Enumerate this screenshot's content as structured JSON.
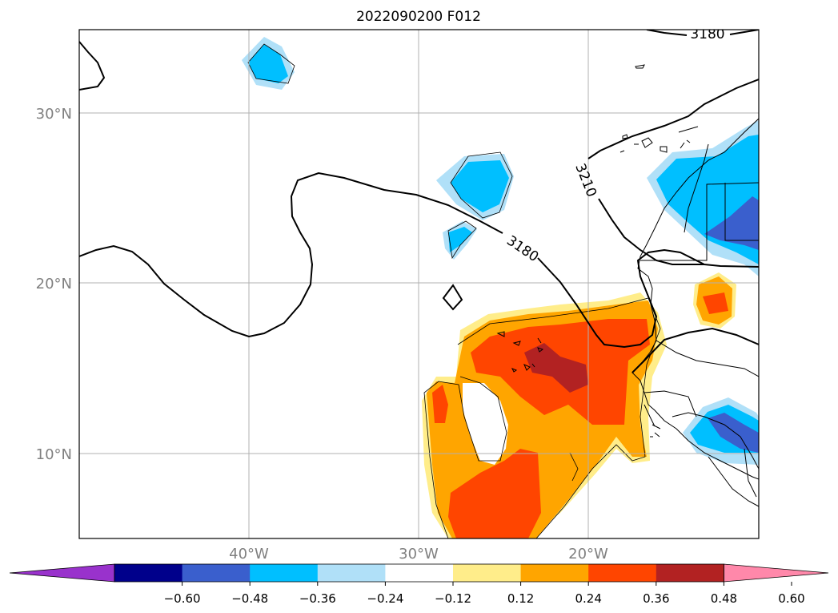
{
  "title": "2022090200 F012",
  "axes": {
    "lat_labels": [
      "30°N",
      "20°N",
      "10°N"
    ],
    "lon_labels": [
      "40°W",
      "30°W",
      "20°W"
    ]
  },
  "contours": {
    "labels": [
      "3180",
      "3180",
      "3210"
    ]
  },
  "colorbar": {
    "ticks": [
      "−0.60",
      "−0.48",
      "−0.36",
      "−0.24",
      "−0.12",
      "0.12",
      "0.24",
      "0.36",
      "0.48",
      "0.60"
    ],
    "colors": [
      "#9932cc",
      "#00008b",
      "#3a5fcd",
      "#00bfff",
      "#b0e0f8",
      "#ffffff",
      "#ffed8a",
      "#ffa500",
      "#ff4500",
      "#b22222",
      "#ff88aa"
    ]
  },
  "colors": {
    "grid": "#b0b0b0",
    "axis_text": "#808080",
    "contour": "#000000"
  }
}
